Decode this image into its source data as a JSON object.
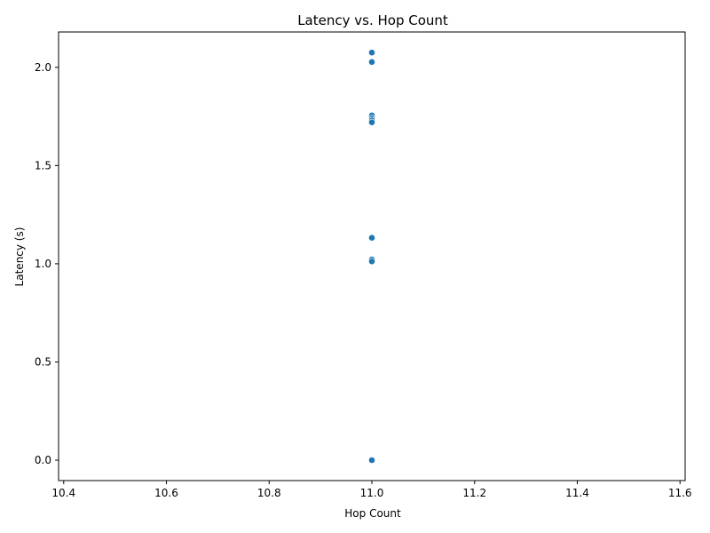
{
  "chart_data": {
    "type": "scatter",
    "title": "Latency vs. Hop Count",
    "xlabel": "Hop Count",
    "ylabel": "Latency (s)",
    "xlim": [
      10.39,
      11.61
    ],
    "ylim": [
      -0.104,
      2.18
    ],
    "xticks": [
      "10.4",
      "10.6",
      "10.8",
      "11.0",
      "11.2",
      "11.4",
      "11.6"
    ],
    "yticks": [
      "0.0",
      "0.5",
      "1.0",
      "1.5",
      "2.0"
    ],
    "grid": false,
    "points": [
      {
        "x": 11.0,
        "y": 2.075
      },
      {
        "x": 11.0,
        "y": 2.027
      },
      {
        "x": 11.0,
        "y": 1.755
      },
      {
        "x": 11.0,
        "y": 1.74
      },
      {
        "x": 11.0,
        "y": 1.73
      },
      {
        "x": 11.0,
        "y": 1.72
      },
      {
        "x": 11.0,
        "y": 1.132
      },
      {
        "x": 11.0,
        "y": 1.022
      },
      {
        "x": 11.0,
        "y": 1.012
      },
      {
        "x": 11.0,
        "y": 0.0
      }
    ]
  }
}
